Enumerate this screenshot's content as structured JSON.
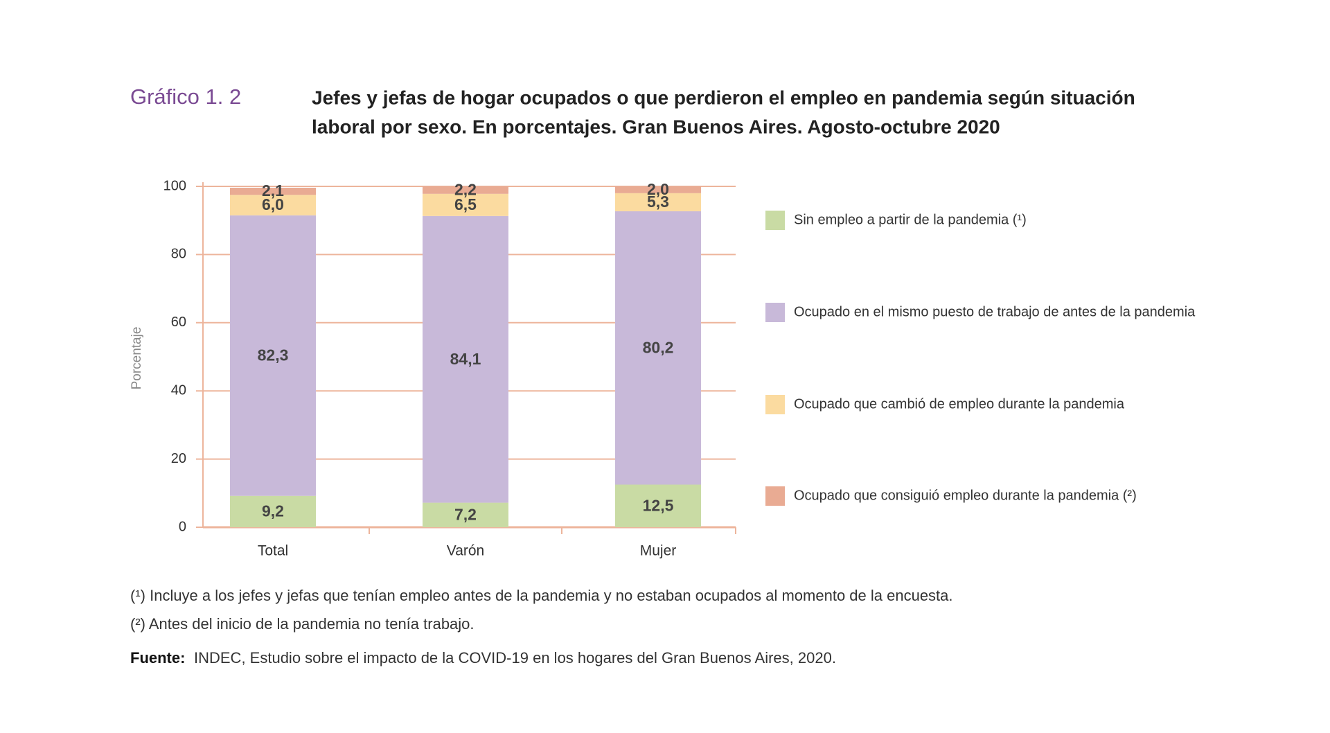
{
  "chart_data": {
    "type": "stacked_bar",
    "label": "Gráfico 1. 2",
    "title": [
      "Jefes y jefas de hogar ocupados o que perdieron el empleo en pandemia según situación",
      "laboral por sexo. En porcentajes. Gran Buenos Aires. Agosto-octubre 2020"
    ],
    "y_label": "Porcentaje",
    "categories": [
      "Total",
      "Varón",
      "Mujer"
    ],
    "ylim": [
      0,
      100
    ],
    "yticks": [
      0,
      20,
      40,
      60,
      80,
      100
    ],
    "grid": true,
    "legend": "right",
    "series": [
      {
        "name": "Sin empleo a partir de la pandemia (¹)",
        "color": "#c9dba4",
        "values": [
          9.2,
          7.2,
          12.5
        ],
        "value_labels": [
          "9,2",
          "7,2",
          "12,5"
        ]
      },
      {
        "name": "Ocupado en el mismo puesto de trabajo de antes de la pandemia",
        "color": "#c8b9d9",
        "values": [
          82.3,
          84.1,
          80.2
        ],
        "value_labels": [
          "82,3",
          "84,1",
          "80,2"
        ]
      },
      {
        "name": "Ocupado que cambió de empleo durante la pandemia",
        "color": "#fbdba0",
        "values": [
          6.0,
          6.5,
          5.3
        ],
        "value_labels": [
          "6,0",
          "6,5",
          "5,3"
        ]
      },
      {
        "name": "Ocupado que consiguió empleo durante la pandemia (²)",
        "color": "#e9ab93",
        "values": [
          2.1,
          2.2,
          2.0
        ],
        "value_labels": [
          "2,1",
          "2,2",
          "2,0"
        ]
      }
    ],
    "notes": [
      "(¹) Incluye a los jefes y jefas que tenían empleo antes de la pandemia y no estaban ocupados al momento de la encuesta.",
      "(²) Antes del inicio de la pandemia no tenía trabajo."
    ],
    "source": {
      "label": "Fuente:",
      "text": "INDEC, Estudio sobre el impacto de la COVID-19 en los hogares del Gran Buenos Aires, 2020."
    }
  }
}
